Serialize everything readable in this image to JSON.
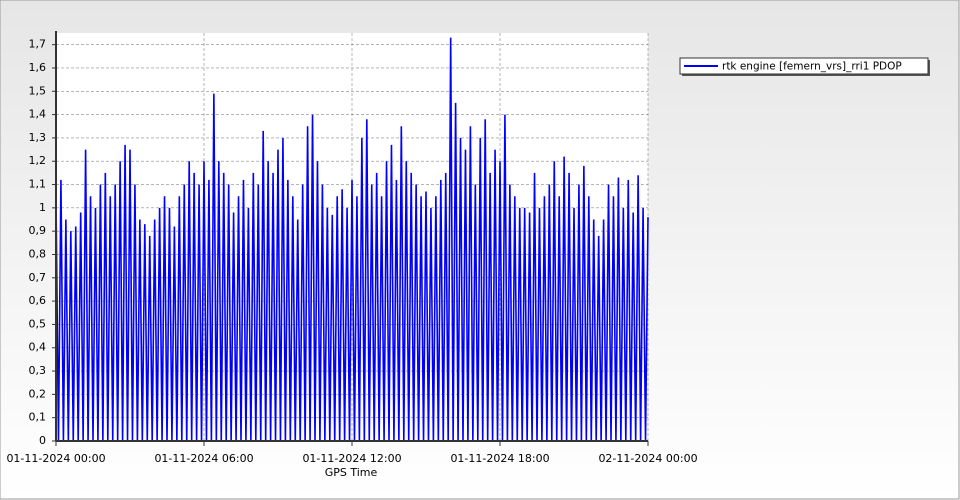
{
  "chart_data": {
    "type": "line",
    "x_label": "GPS Time",
    "xlim": [
      0,
      24
    ],
    "xticks": [
      {
        "value": 0,
        "label": "01-11-2024 00:00"
      },
      {
        "value": 6,
        "label": "01-11-2024 06:00"
      },
      {
        "value": 12,
        "label": "01-11-2024 12:00"
      },
      {
        "value": 18,
        "label": "01-11-2024 18:00"
      },
      {
        "value": 24,
        "label": "02-11-2024 00:00"
      }
    ],
    "ylim": [
      0,
      1.75
    ],
    "yticks": [
      0,
      {
        "value": 0.1,
        "label": "0,1"
      },
      {
        "value": 0.2,
        "label": "0,2"
      },
      {
        "value": 0.3,
        "label": "0,3"
      },
      {
        "value": 0.4,
        "label": "0,4"
      },
      {
        "value": 0.5,
        "label": "0,5"
      },
      {
        "value": 0.6,
        "label": "0,6"
      },
      {
        "value": 0.7,
        "label": "0,7"
      },
      {
        "value": 0.8,
        "label": "0,8"
      },
      {
        "value": 0.9,
        "label": "0,9"
      },
      1,
      {
        "value": 1.1,
        "label": "1,1"
      },
      {
        "value": 1.2,
        "label": "1,2"
      },
      {
        "value": 1.3,
        "label": "1,3"
      },
      {
        "value": 1.4,
        "label": "1,4"
      },
      {
        "value": 1.5,
        "label": "1,5"
      },
      {
        "value": 1.6,
        "label": "1,6"
      },
      {
        "value": 1.7,
        "label": "1,7"
      }
    ],
    "grid": true,
    "legend": "top-right",
    "x": [
      0,
      0.1,
      0.2,
      0.3,
      0.4,
      0.5,
      0.6,
      0.7,
      0.8,
      0.9,
      1,
      1.1,
      1.2,
      1.3,
      1.4,
      1.5,
      1.6,
      1.7,
      1.8,
      1.9,
      2,
      2.1,
      2.2,
      2.3,
      2.4,
      2.5,
      2.6,
      2.7,
      2.8,
      2.9,
      3,
      3.1,
      3.2,
      3.3,
      3.4,
      3.5,
      3.6,
      3.7,
      3.8,
      3.9,
      4,
      4.1,
      4.2,
      4.3,
      4.4,
      4.5,
      4.6,
      4.7,
      4.8,
      4.9,
      5,
      5.1,
      5.2,
      5.3,
      5.4,
      5.5,
      5.6,
      5.7,
      5.8,
      5.9,
      6,
      6.1,
      6.2,
      6.3,
      6.4,
      6.5,
      6.6,
      6.7,
      6.8,
      6.9,
      7,
      7.1,
      7.2,
      7.3,
      7.4,
      7.5,
      7.6,
      7.7,
      7.8,
      7.9,
      8,
      8.1,
      8.2,
      8.3,
      8.4,
      8.5,
      8.6,
      8.7,
      8.8,
      8.9,
      9,
      9.1,
      9.2,
      9.3,
      9.4,
      9.5,
      9.6,
      9.7,
      9.8,
      9.9,
      10,
      10.1,
      10.2,
      10.3,
      10.4,
      10.5,
      10.6,
      10.7,
      10.8,
      10.9,
      11,
      11.1,
      11.2,
      11.3,
      11.4,
      11.5,
      11.6,
      11.7,
      11.8,
      11.9,
      12,
      12.1,
      12.2,
      12.3,
      12.4,
      12.5,
      12.6,
      12.7,
      12.8,
      12.9,
      13,
      13.1,
      13.2,
      13.3,
      13.4,
      13.5,
      13.6,
      13.7,
      13.8,
      13.9,
      14,
      14.1,
      14.2,
      14.3,
      14.4,
      14.5,
      14.6,
      14.7,
      14.8,
      14.9,
      15,
      15.1,
      15.2,
      15.3,
      15.4,
      15.5,
      15.6,
      15.7,
      15.8,
      15.9,
      16,
      16.1,
      16.2,
      16.3,
      16.4,
      16.5,
      16.6,
      16.7,
      16.8,
      16.9,
      17,
      17.1,
      17.2,
      17.3,
      17.4,
      17.5,
      17.6,
      17.7,
      17.8,
      17.9,
      18,
      18.1,
      18.2,
      18.3,
      18.4,
      18.5,
      18.6,
      18.7,
      18.8,
      18.9,
      19,
      19.1,
      19.2,
      19.3,
      19.4,
      19.5,
      19.6,
      19.7,
      19.8,
      19.9,
      20,
      20.1,
      20.2,
      20.3,
      20.4,
      20.5,
      20.6,
      20.7,
      20.8,
      20.9,
      21,
      21.1,
      21.2,
      21.3,
      21.4,
      21.5,
      21.6,
      21.7,
      21.8,
      21.9,
      22,
      22.1,
      22.2,
      22.3,
      22.4,
      22.5,
      22.6,
      22.7,
      22.8,
      22.9,
      23,
      23.1,
      23.2,
      23.3,
      23.4,
      23.5,
      23.6,
      23.7,
      23.8,
      23.9,
      24
    ],
    "series": [
      {
        "name": "rtk engine [femern_vrs]_rri1 PDOP",
        "color": "#0000ff",
        "values": [
          1.05,
          0,
          1.12,
          0,
          0.95,
          0,
          0.9,
          0,
          0.92,
          0,
          0.98,
          0,
          1.25,
          0,
          1.05,
          0,
          1.0,
          0,
          1.1,
          0,
          1.15,
          0,
          1.05,
          0,
          1.1,
          0,
          1.2,
          0,
          1.27,
          0,
          1.25,
          0,
          1.1,
          0,
          0.95,
          0,
          0.93,
          0,
          0.88,
          0,
          0.95,
          0,
          1.0,
          0,
          1.05,
          0,
          1.0,
          0,
          0.92,
          0,
          1.05,
          0,
          1.1,
          0,
          1.2,
          0,
          1.15,
          0,
          1.1,
          0,
          1.2,
          0,
          1.12,
          0,
          1.49,
          0,
          1.2,
          0,
          1.15,
          0,
          1.1,
          0,
          0.98,
          0,
          1.05,
          0,
          1.12,
          0,
          1.0,
          0,
          1.15,
          0,
          1.1,
          0,
          1.33,
          0,
          1.2,
          0,
          1.15,
          0,
          1.25,
          0,
          1.3,
          0,
          1.12,
          0,
          1.05,
          0,
          0.95,
          0,
          1.1,
          0,
          1.35,
          0,
          1.4,
          0,
          1.2,
          0,
          1.1,
          0,
          1.0,
          0,
          0.97,
          0,
          1.05,
          0,
          1.08,
          0,
          1.0,
          0,
          1.12,
          0,
          1.05,
          0,
          1.3,
          0,
          1.38,
          0,
          1.1,
          0,
          1.15,
          0,
          1.05,
          0,
          1.2,
          0,
          1.27,
          0,
          1.12,
          0,
          1.35,
          0,
          1.2,
          0,
          1.15,
          0,
          1.1,
          0,
          1.05,
          0,
          1.07,
          0,
          1.0,
          0,
          1.05,
          0,
          1.12,
          0,
          1.15,
          0,
          1.73,
          0,
          1.45,
          0,
          1.3,
          0,
          1.25,
          0,
          1.35,
          0,
          1.1,
          0,
          1.3,
          0,
          1.38,
          0,
          1.15,
          0,
          1.25,
          0,
          1.2,
          0,
          1.4,
          0,
          1.1,
          0,
          1.05,
          0,
          1.0,
          0,
          1.0,
          0,
          0.98,
          0,
          1.15,
          0,
          1.0,
          0,
          1.05,
          0,
          1.1,
          0,
          1.2,
          0,
          1.05,
          0,
          1.22,
          0,
          1.15,
          0,
          1.0,
          0,
          1.1,
          0,
          1.18,
          0,
          1.05,
          0,
          0.95,
          0,
          0.88,
          0,
          0.95,
          0,
          1.1,
          0,
          1.05,
          0,
          1.13,
          0,
          1.0,
          0,
          1.12,
          0,
          0.98,
          0,
          1.14,
          0,
          1.0,
          0,
          0.96
        ]
      }
    ]
  }
}
